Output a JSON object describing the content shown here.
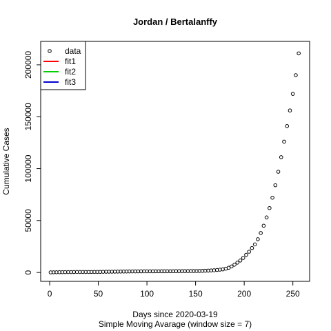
{
  "chart_data": {
    "type": "scatter",
    "title": "Jordan / Bertalanffy",
    "x_label": "Days since 2020-03-19",
    "subtitle": "Simple Moving Avarage (window size = 7)",
    "y_label": "Cumulative Cases",
    "xlim": [
      -9.24,
      267.24
    ],
    "ylim": [
      -8560,
      222560
    ],
    "xticks": [
      0,
      50,
      100,
      150,
      200,
      250
    ],
    "yticks": [
      0,
      50000,
      100000,
      150000,
      200000
    ],
    "x": [
      1,
      4,
      7,
      10,
      13,
      16,
      19,
      22,
      25,
      28,
      31,
      34,
      37,
      40,
      43,
      46,
      49,
      52,
      55,
      58,
      61,
      64,
      67,
      70,
      73,
      76,
      79,
      82,
      85,
      88,
      91,
      94,
      97,
      100,
      103,
      106,
      109,
      112,
      115,
      118,
      121,
      124,
      127,
      130,
      133,
      136,
      139,
      142,
      145,
      148,
      151,
      154,
      157,
      160,
      163,
      166,
      169,
      172,
      175,
      178,
      181,
      184,
      187,
      190,
      193,
      196,
      199,
      202,
      205,
      208,
      211,
      214,
      217,
      220,
      223,
      226,
      229,
      232,
      235,
      238,
      241,
      244,
      247,
      250,
      253,
      256
    ],
    "series": [
      {
        "name": "data",
        "color": "#000000",
        "marker": "circle",
        "values": [
          100,
          150,
          200,
          260,
          300,
          340,
          370,
          400,
          420,
          440,
          450,
          460,
          470,
          480,
          490,
          500,
          510,
          580,
          650,
          700,
          730,
          760,
          800,
          840,
          880,
          920,
          960,
          1000,
          1030,
          1050,
          1070,
          1080,
          1100,
          1120,
          1130,
          1140,
          1150,
          1160,
          1170,
          1180,
          1200,
          1220,
          1240,
          1260,
          1280,
          1300,
          1320,
          1340,
          1360,
          1380,
          1400,
          1450,
          1550,
          1650,
          1800,
          1950,
          2100,
          2400,
          2700,
          3000,
          3600,
          4500,
          5800,
          7500,
          9500,
          11500,
          14000,
          17000,
          20000,
          23500,
          27000,
          32000,
          38000,
          45000,
          53000,
          62000,
          72000,
          84000,
          97000,
          111000,
          126000,
          141000,
          156000,
          172000,
          190000,
          211000
        ]
      }
    ],
    "legend_position": "top-left",
    "legend_items": [
      {
        "name": "data",
        "color": "#000000",
        "marker": "circle"
      },
      {
        "name": "fit1",
        "color": "#ff0000",
        "marker": "line"
      },
      {
        "name": "fit2",
        "color": "#00cd00",
        "marker": "line"
      },
      {
        "name": "fit3",
        "color": "#0000cd",
        "marker": "line"
      }
    ]
  }
}
